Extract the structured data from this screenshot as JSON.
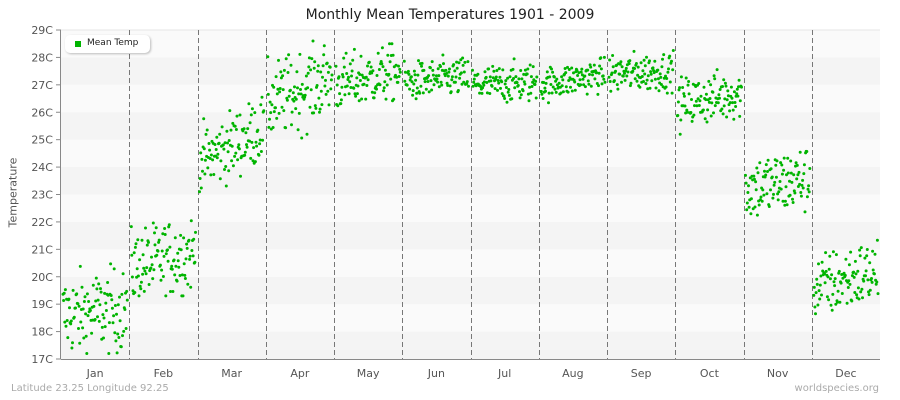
{
  "chart": {
    "title": "Monthly Mean Temperatures 1901 - 2009",
    "ylabel": "Temperature",
    "legend_label": "Mean Temp",
    "footer_left": "Latitude 23.25 Longitude 92.25",
    "footer_right": "worldspecies.org",
    "point_color": "#00b400"
  },
  "chart_data": {
    "type": "scatter",
    "title": "Monthly Mean Temperatures 1901 - 2009",
    "xlabel": "",
    "ylabel": "Temperature",
    "ylim": [
      17,
      29
    ],
    "yticks": [
      "17C",
      "18C",
      "19C",
      "20C",
      "21C",
      "22C",
      "23C",
      "24C",
      "25C",
      "26C",
      "27C",
      "28C",
      "29C"
    ],
    "categories": [
      "Jan",
      "Feb",
      "Mar",
      "Apr",
      "May",
      "Jun",
      "Jul",
      "Aug",
      "Sep",
      "Oct",
      "Nov",
      "Dec"
    ],
    "legend": [
      "Mean Temp"
    ],
    "legend_position": "top-left",
    "grid": "horizontal alternating bands, dashed vertical month separators",
    "years": [
      1901,
      2009
    ],
    "series": [
      {
        "name": "Mean Temp",
        "month_summary": [
          {
            "month": "Jan",
            "start": 18.6,
            "end": 18.8,
            "mean": 18.8,
            "spread": 0.75,
            "min": 17.2,
            "max": 20.5
          },
          {
            "month": "Feb",
            "start": 20.3,
            "end": 20.9,
            "mean": 20.6,
            "spread": 0.7,
            "min": 19.3,
            "max": 23.1
          },
          {
            "month": "Mar",
            "start": 24.2,
            "end": 25.4,
            "mean": 24.7,
            "spread": 0.6,
            "min": 23.1,
            "max": 26.6
          },
          {
            "month": "Apr",
            "start": 26.3,
            "end": 27.3,
            "mean": 26.9,
            "spread": 0.7,
            "min": 24.8,
            "max": 28.6
          },
          {
            "month": "May",
            "start": 27.0,
            "end": 27.5,
            "mean": 27.3,
            "spread": 0.5,
            "min": 25.6,
            "max": 29.0
          },
          {
            "month": "Jun",
            "start": 27.1,
            "end": 27.3,
            "mean": 27.2,
            "spread": 0.35,
            "min": 25.8,
            "max": 28.1
          },
          {
            "month": "Jul",
            "start": 27.0,
            "end": 27.1,
            "mean": 27.1,
            "spread": 0.35,
            "min": 26.0,
            "max": 28.0
          },
          {
            "month": "Aug",
            "start": 27.0,
            "end": 27.4,
            "mean": 27.2,
            "spread": 0.3,
            "min": 26.2,
            "max": 28.0
          },
          {
            "month": "Sep",
            "start": 27.4,
            "end": 27.5,
            "mean": 27.4,
            "spread": 0.35,
            "min": 26.7,
            "max": 28.6
          },
          {
            "month": "Oct",
            "start": 26.3,
            "end": 26.7,
            "mean": 26.4,
            "spread": 0.45,
            "min": 25.2,
            "max": 28.2
          },
          {
            "month": "Nov",
            "start": 23.2,
            "end": 23.6,
            "mean": 23.3,
            "spread": 0.6,
            "min": 21.6,
            "max": 25.4
          },
          {
            "month": "Dec",
            "start": 19.6,
            "end": 20.2,
            "mean": 19.8,
            "spread": 0.6,
            "min": 18.1,
            "max": 21.7
          }
        ]
      }
    ]
  }
}
